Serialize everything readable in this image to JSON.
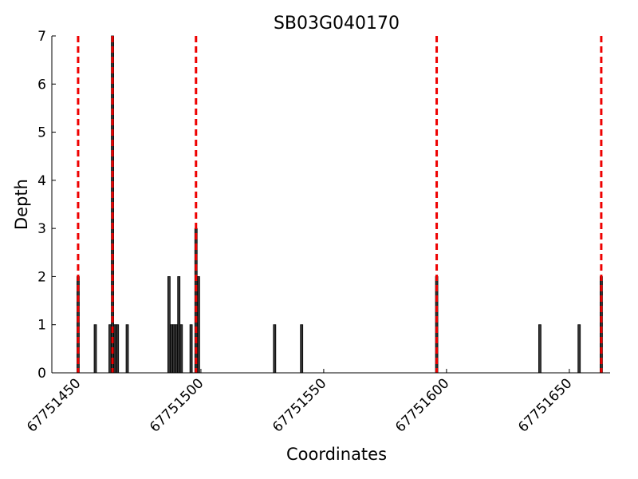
{
  "chart_data": {
    "type": "bar",
    "title": "SB03G040170",
    "xlabel": "Coordinates",
    "ylabel": "Depth",
    "x": [
      67751450,
      67751457,
      67751463,
      67751464,
      67751465,
      67751466,
      67751470,
      67751487,
      67751488,
      67751489,
      67751490,
      67751491,
      67751492,
      67751496,
      67751498,
      67751499,
      67751530,
      67751541,
      67751596,
      67751638,
      67751654,
      67751663
    ],
    "values": [
      2,
      1,
      1,
      7,
      1,
      1,
      1,
      2,
      1,
      1,
      1,
      2,
      1,
      1,
      3,
      2,
      1,
      1,
      2,
      1,
      1,
      2
    ],
    "color": "#333333",
    "vlines": [
      67751450,
      67751464,
      67751498,
      67751596,
      67751663
    ],
    "vline_color": "#ee0000",
    "xlim": [
      67751439.3,
      67751666.6
    ],
    "xticks": [
      67751450,
      67751500,
      67751550,
      67751600,
      67751650
    ],
    "ylim": [
      0,
      7
    ],
    "yticks": [
      0,
      1,
      2,
      3,
      4,
      5,
      6,
      7
    ]
  }
}
